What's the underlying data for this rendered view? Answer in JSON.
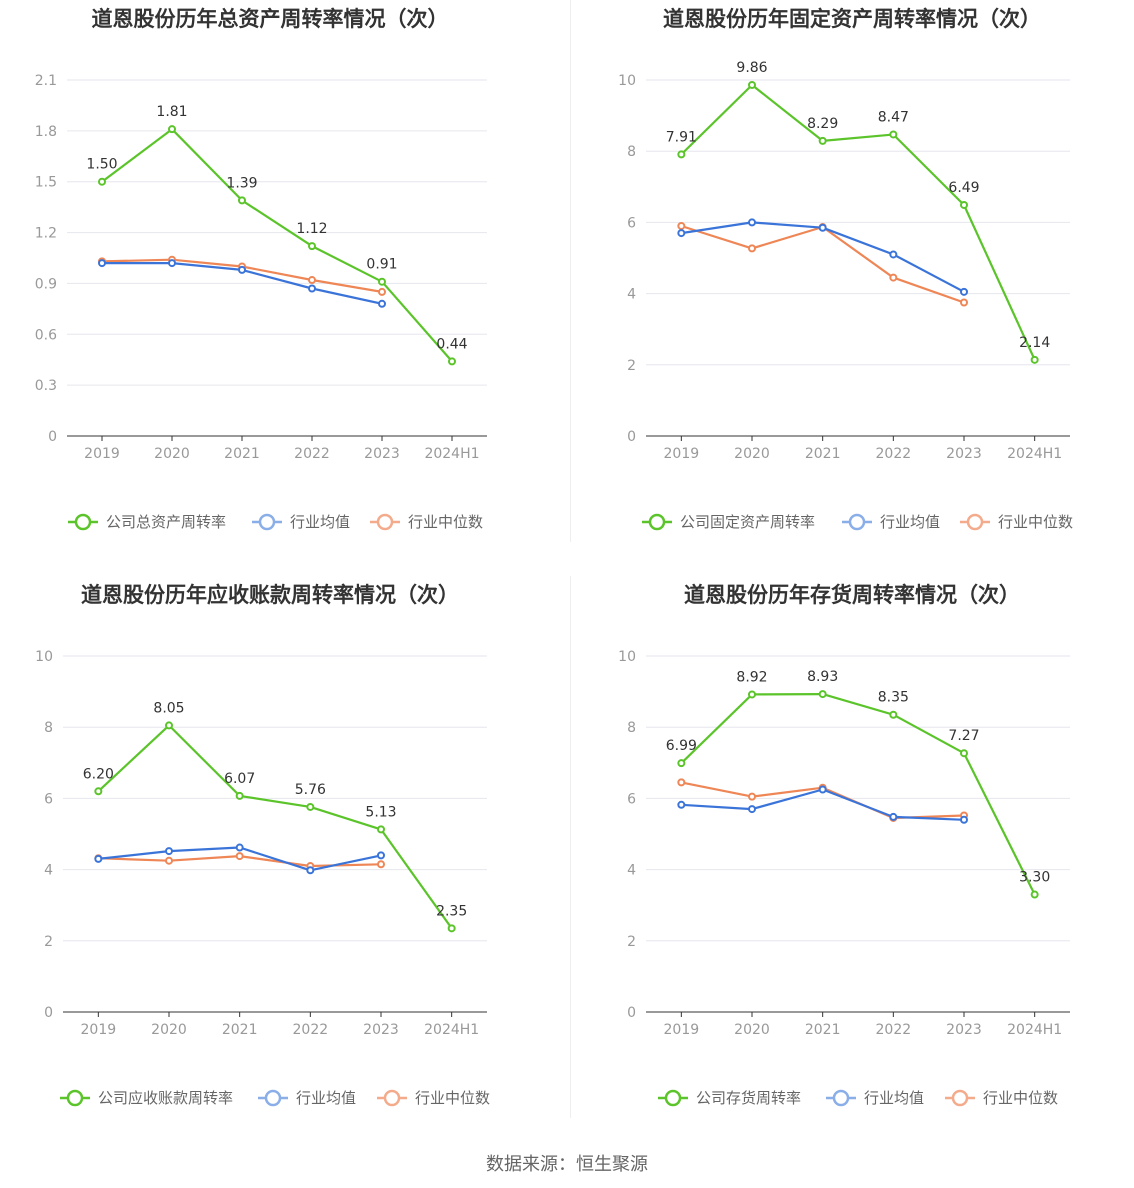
{
  "source_label": "数据来源：恒生聚源",
  "colors": {
    "company": "#5bc42a",
    "avg": "#3b74d9",
    "median": "#ee8656",
    "grid": "#e6e6ee",
    "axis": "#333333"
  },
  "legend_colors": {
    "company": "#5bc42a",
    "avg": "#8aaee8",
    "median": "#f3ab8c"
  },
  "chart_data": [
    {
      "type": "line",
      "title": "道恩股份历年总资产周转率情况（次）",
      "categories": [
        "2019",
        "2020",
        "2021",
        "2022",
        "2023",
        "2024H1"
      ],
      "yticks": [
        "0",
        "0.3",
        "0.6",
        "0.9",
        "1.2",
        "1.5",
        "1.8",
        "2.1"
      ],
      "ylim": [
        0,
        2.1
      ],
      "legend_position": "bottom",
      "series": [
        {
          "name": "公司总资产周转率",
          "role": "company",
          "values": [
            1.5,
            1.81,
            1.39,
            1.12,
            0.91,
            0.44
          ],
          "labels": [
            "1.50",
            "1.81",
            "1.39",
            "1.12",
            "0.91",
            "0.44"
          ]
        },
        {
          "name": "行业均值",
          "role": "avg",
          "values": [
            1.02,
            1.02,
            0.98,
            0.87,
            0.78,
            null
          ]
        },
        {
          "name": "行业中位数",
          "role": "median",
          "values": [
            1.03,
            1.04,
            1.0,
            0.92,
            0.85,
            null
          ]
        }
      ]
    },
    {
      "type": "line",
      "title": "道恩股份历年固定资产周转率情况（次）",
      "categories": [
        "2019",
        "2020",
        "2021",
        "2022",
        "2023",
        "2024H1"
      ],
      "yticks": [
        "0",
        "2",
        "4",
        "6",
        "8",
        "10"
      ],
      "ylim": [
        0,
        10
      ],
      "legend_position": "bottom",
      "series": [
        {
          "name": "公司固定资产周转率",
          "role": "company",
          "values": [
            7.91,
            9.86,
            8.29,
            8.47,
            6.49,
            2.14
          ],
          "labels": [
            "7.91",
            "9.86",
            "8.29",
            "8.47",
            "6.49",
            "2.14"
          ]
        },
        {
          "name": "行业均值",
          "role": "avg",
          "values": [
            5.7,
            6.0,
            5.85,
            5.1,
            4.05,
            null
          ]
        },
        {
          "name": "行业中位数",
          "role": "median",
          "values": [
            5.9,
            5.27,
            5.87,
            4.45,
            3.75,
            null
          ]
        }
      ]
    },
    {
      "type": "line",
      "title": "道恩股份历年应收账款周转率情况（次）",
      "categories": [
        "2019",
        "2020",
        "2021",
        "2022",
        "2023",
        "2024H1"
      ],
      "yticks": [
        "0",
        "2",
        "4",
        "6",
        "8",
        "10"
      ],
      "ylim": [
        0,
        10
      ],
      "legend_position": "bottom",
      "series": [
        {
          "name": "公司应收账款周转率",
          "role": "company",
          "values": [
            6.2,
            8.05,
            6.07,
            5.76,
            5.13,
            2.35
          ],
          "labels": [
            "6.20",
            "8.05",
            "6.07",
            "5.76",
            "5.13",
            "2.35"
          ]
        },
        {
          "name": "行业均值",
          "role": "avg",
          "values": [
            4.3,
            4.52,
            4.62,
            3.98,
            4.4,
            null
          ]
        },
        {
          "name": "行业中位数",
          "role": "median",
          "values": [
            4.32,
            4.25,
            4.38,
            4.1,
            4.15,
            null
          ]
        }
      ]
    },
    {
      "type": "line",
      "title": "道恩股份历年存货周转率情况（次）",
      "categories": [
        "2019",
        "2020",
        "2021",
        "2022",
        "2023",
        "2024H1"
      ],
      "yticks": [
        "0",
        "2",
        "4",
        "6",
        "8",
        "10"
      ],
      "ylim": [
        0,
        10
      ],
      "legend_position": "bottom",
      "series": [
        {
          "name": "公司存货周转率",
          "role": "company",
          "values": [
            6.99,
            8.92,
            8.93,
            8.35,
            7.27,
            3.3
          ],
          "labels": [
            "6.99",
            "8.92",
            "8.93",
            "8.35",
            "7.27",
            "3.30"
          ]
        },
        {
          "name": "行业均值",
          "role": "avg",
          "values": [
            5.82,
            5.7,
            6.25,
            5.48,
            5.4,
            null
          ]
        },
        {
          "name": "行业中位数",
          "role": "median",
          "values": [
            6.45,
            6.05,
            6.3,
            5.45,
            5.52,
            null
          ]
        }
      ]
    }
  ]
}
